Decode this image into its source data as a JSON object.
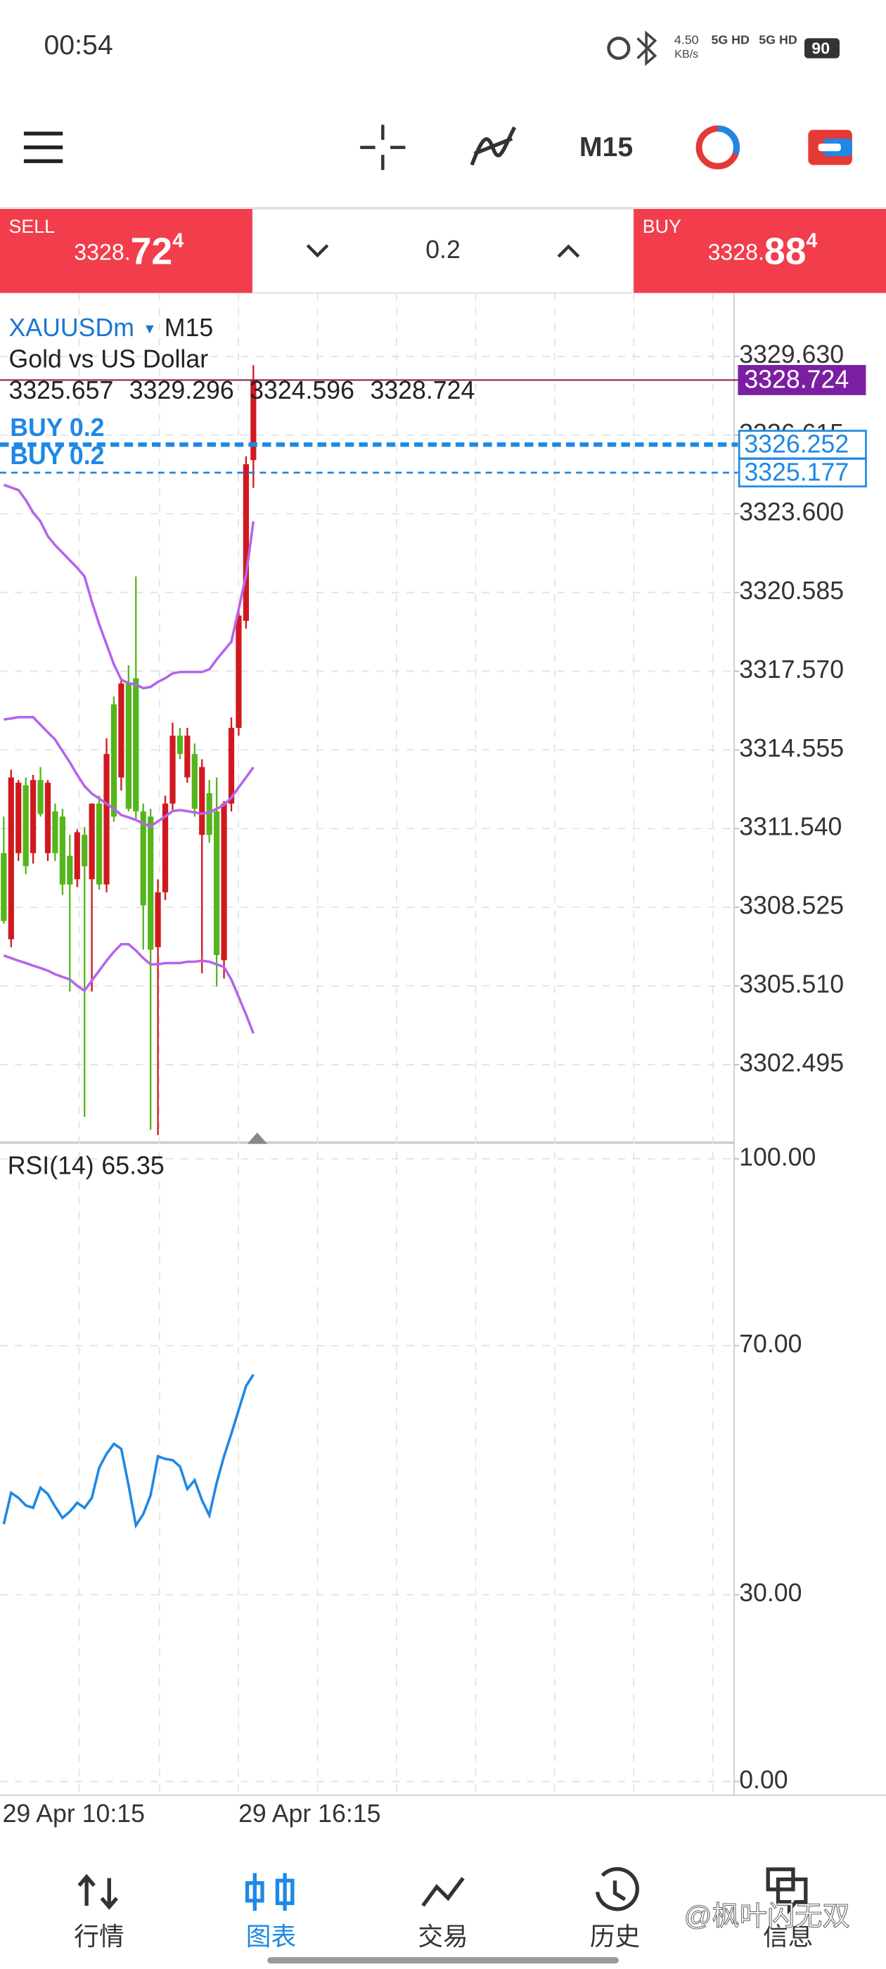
{
  "status_bar": {
    "time": "00:54",
    "net_speed": "4.50",
    "net_unit": "KB/s",
    "network_1": "5G HD",
    "network_2": "5G HD",
    "battery": "90"
  },
  "toolbar": {
    "timeframe": "M15"
  },
  "trade_panel": {
    "sell": {
      "label": "SELL",
      "price_prefix": "3328.",
      "price_main": "72",
      "price_sup": "4",
      "color": "#f23d4c"
    },
    "volume": "0.2",
    "buy": {
      "label": "BUY",
      "price_prefix": "3328.",
      "price_main": "88",
      "price_sup": "4",
      "color": "#f23d4c"
    }
  },
  "chart": {
    "type": "candlestick",
    "symbol": "XAUUSDm",
    "symbol_marker": "▾",
    "timeframe": "M15",
    "description": "Gold vs US Dollar",
    "candles": {
      "open": [
        3310.6,
        3307.3,
        3310.6,
        3313.2,
        3310.6,
        3313.4,
        3310.6,
        3312.2,
        3312.0,
        3310.5,
        3309.6,
        3311.3,
        3309.6,
        3312.5,
        3309.4,
        3316.3,
        3313.5,
        3317.1,
        3317.3,
        3312.2,
        3312.0,
        3307.0,
        3309.1,
        3312.5,
        3315.1,
        3313.5,
        3314.4,
        3311.3,
        3312.9,
        3312.2,
        3306.5,
        3312.5,
        3315.4,
        3319.5,
        3325.657
      ],
      "high": [
        3312.0,
        3313.8,
        3313.4,
        3313.5,
        3313.6,
        3313.9,
        3313.4,
        3312.5,
        3312.3,
        3311.3,
        3311.5,
        3311.6,
        3312.5,
        3312.8,
        3315.0,
        3316.6,
        3317.2,
        3317.8,
        3321.2,
        3312.5,
        3312.3,
        3309.6,
        3312.8,
        3315.6,
        3315.4,
        3315.4,
        3314.8,
        3314.2,
        3313.4,
        3313.5,
        3312.6,
        3315.8,
        3320.0,
        3325.8,
        3329.296
      ],
      "low": [
        3307.9,
        3307.0,
        3310.3,
        3309.8,
        3310.2,
        3312.0,
        3310.3,
        3310.3,
        3309.0,
        3305.3,
        3309.3,
        3300.5,
        3305.3,
        3309.2,
        3309.1,
        3311.8,
        3313.0,
        3312.2,
        3311.9,
        3306.9,
        3300.0,
        3299.8,
        3308.8,
        3312.2,
        3314.2,
        3313.3,
        3312.0,
        3306.0,
        3311.0,
        3305.5,
        3305.8,
        3312.2,
        3315.1,
        3319.2,
        3324.596
      ],
      "close": [
        3308.0,
        3313.5,
        3313.3,
        3310.1,
        3313.4,
        3312.1,
        3313.3,
        3310.6,
        3309.4,
        3309.4,
        3311.4,
        3310.1,
        3312.5,
        3309.4,
        3314.4,
        3312.0,
        3317.1,
        3312.3,
        3312.2,
        3308.6,
        3306.9,
        3309.1,
        3312.5,
        3315.1,
        3314.4,
        3315.1,
        3312.3,
        3313.9,
        3311.3,
        3306.7,
        3312.5,
        3315.4,
        3319.7,
        3325.5,
        3328.724
      ]
    },
    "up_color": "#d0191f",
    "down_color": "#55b51c",
    "bollinger": {
      "color": "#b665ea",
      "upper": [
        3324.71,
        3324.61,
        3324.51,
        3324.13,
        3323.65,
        3323.31,
        3322.74,
        3322.4,
        3322.11,
        3321.82,
        3321.53,
        3321.2,
        3320.23,
        3319.37,
        3318.6,
        3317.83,
        3317.25,
        3317.11,
        3317.06,
        3316.92,
        3316.97,
        3317.16,
        3317.3,
        3317.49,
        3317.54,
        3317.54,
        3317.54,
        3317.54,
        3317.64,
        3318.02,
        3318.36,
        3318.7,
        3319.95,
        3321.24,
        3323.31
      ],
      "middle": [
        3315.72,
        3315.76,
        3315.81,
        3315.81,
        3315.81,
        3315.52,
        3315.23,
        3314.95,
        3314.51,
        3314.08,
        3313.6,
        3313.17,
        3312.88,
        3312.69,
        3312.49,
        3312.3,
        3312.06,
        3311.97,
        3311.87,
        3311.73,
        3311.63,
        3311.82,
        3312.01,
        3312.21,
        3312.25,
        3312.21,
        3312.16,
        3312.11,
        3312.16,
        3312.3,
        3312.45,
        3312.73,
        3313.12,
        3313.5,
        3313.89
      ],
      "lower": [
        3306.68,
        3306.58,
        3306.48,
        3306.39,
        3306.29,
        3306.2,
        3306.1,
        3305.96,
        3305.86,
        3305.76,
        3305.52,
        3305.33,
        3305.72,
        3306.1,
        3306.48,
        3306.82,
        3307.11,
        3307.11,
        3306.87,
        3306.58,
        3306.34,
        3306.34,
        3306.39,
        3306.39,
        3306.39,
        3306.44,
        3306.44,
        3306.48,
        3306.44,
        3306.34,
        3306.24,
        3305.76,
        3305.09,
        3304.42,
        3303.7
      ]
    },
    "ylim": [
      3299.51,
      3332.06
    ],
    "yticks": [
      {
        "value": 3302.495,
        "label": "3302.495"
      },
      {
        "value": 3305.51,
        "label": "3305.510"
      },
      {
        "value": 3308.525,
        "label": "3308.525"
      },
      {
        "value": 3311.54,
        "label": "3311.540"
      },
      {
        "value": 3314.555,
        "label": "3314.555"
      },
      {
        "value": 3317.57,
        "label": "3317.570"
      },
      {
        "value": 3320.585,
        "label": "3320.585"
      },
      {
        "value": 3323.6,
        "label": "3323.600"
      },
      {
        "value": 3326.615,
        "label": "3326.615"
      },
      {
        "value": 3329.63,
        "label": "3329.630"
      }
    ],
    "grid": true,
    "price_lines": [
      {
        "value": 3328.724,
        "color": "#7b1fa2"
      },
      {
        "value": 3326.252,
        "order": "BUY 0.2",
        "color": "#1e88e5"
      },
      {
        "value": 3325.177,
        "order": "BUY 0.2",
        "color": "#1e88e5"
      }
    ],
    "x_labels": [
      "29 Apr 10:15",
      "29 Apr 16:15"
    ],
    "rsi": {
      "label": "RSI(14)",
      "color": "#1e88e5",
      "values": [
        41.33,
        46.37,
        45.56,
        44.35,
        43.95,
        47.18,
        46.17,
        44.15,
        42.34,
        43.35,
        44.76,
        43.95,
        45.56,
        50.4,
        52.62,
        54.23,
        53.43,
        47.58,
        41.13,
        42.94,
        45.97,
        52.22,
        51.81,
        51.61,
        50.6,
        46.98,
        48.39,
        45.16,
        42.74,
        47.98,
        52.22,
        55.85,
        59.68,
        63.51,
        65.35
      ],
      "ylim": [
        -2.2,
        102.6
      ],
      "yticks": [
        {
          "value": 100,
          "label": "100.00"
        },
        {
          "value": 70,
          "label": "70.00"
        },
        {
          "value": 30,
          "label": "30.00"
        },
        {
          "value": 0,
          "label": "0.00"
        }
      ]
    }
  },
  "bottom_nav": {
    "active_color": "#1e88e5",
    "items": [
      {
        "label": "行情"
      },
      {
        "label": "图表",
        "active": true
      },
      {
        "label": "交易"
      },
      {
        "label": "历史"
      },
      {
        "label": "信息"
      }
    ]
  },
  "watermark": "@枫叶闪无双"
}
